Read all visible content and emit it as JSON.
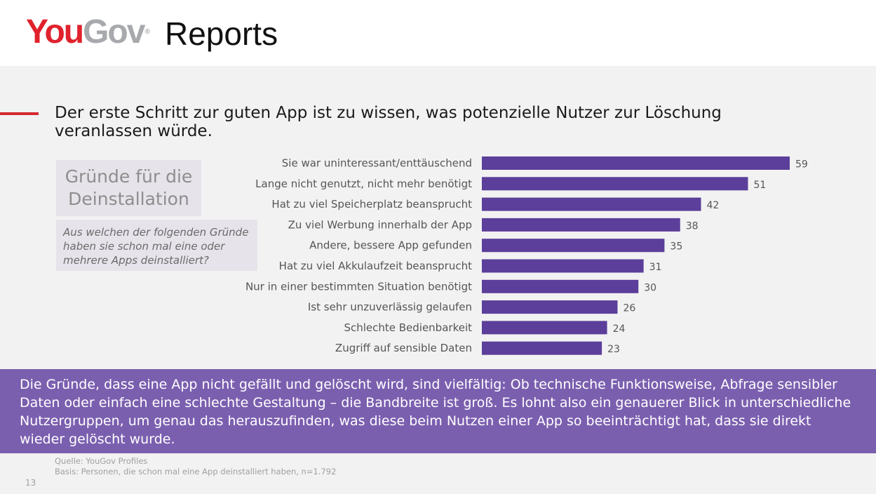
{
  "header": {
    "logo_you": "You",
    "logo_gov": "Gov",
    "logo_reg": "®",
    "product": "Reports"
  },
  "slide": {
    "headline": "Der erste Schritt zur guten App ist zu wissen, was potenzielle Nutzer zur Löschung veranlassen würde.",
    "topic": "Gründe für die Deinstallation",
    "question": "Aus welchen der folgenden Gründe haben sie schon mal eine oder mehrere Apps deinstalliert?",
    "callout": "Die Gründe, dass eine App nicht gefällt und gelöscht wird, sind vielfältig: Ob technische Funktionsweise, Abfrage sensibler Daten oder einfach eine schlechte Gestaltung – die Bandbreite ist groß. Es lohnt also ein genauerer Blick in unterschiedliche Nutzergruppen, um genau das herauszufinden, was diese beim Nutzen einer App so beeinträchtigt hat, dass sie direkt wieder gelöscht wurde.",
    "source_line": "Quelle: YouGov Profiles",
    "basis_line": "Basis: Personen, die schon mal eine App deinstalliert haben, n=1.792",
    "page_number": "13"
  },
  "colors": {
    "bar": "#5b3f9a",
    "callout_bg": "#7b5faf",
    "accent_red": "#d62a31"
  },
  "chart_data": {
    "type": "bar",
    "orientation": "horizontal",
    "categories": [
      "Sie war uninteressant/enttäuschend",
      "Lange nicht genutzt, nicht mehr benötigt",
      "Hat zu viel Speicherplatz beansprucht",
      "Zu viel Werbung innerhalb der App",
      "Andere, bessere App gefunden",
      "Hat zu viel Akkulaufzeit beansprucht",
      "Nur in einer bestimmten Situation benötigt",
      "Ist sehr unzuverlässig gelaufen",
      "Schlechte Bedienbarkeit",
      "Zugriff auf sensible Daten"
    ],
    "values": [
      59,
      51,
      42,
      38,
      35,
      31,
      30,
      26,
      24,
      23
    ],
    "xlim": [
      0,
      59
    ],
    "grid": false,
    "data_labels": true
  }
}
